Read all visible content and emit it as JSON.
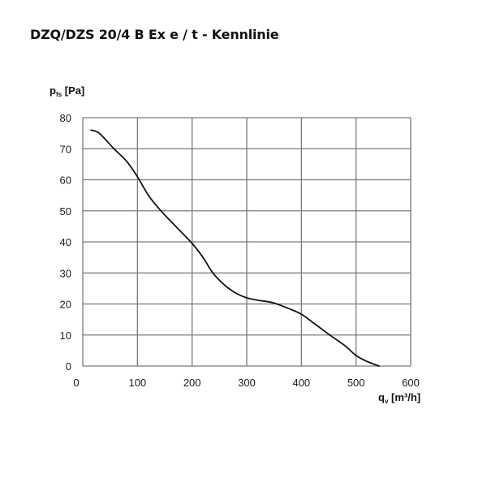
{
  "title": "DZQ/DZS 20/4 B Ex e / t - Kennlinie",
  "colors": {
    "grid": "#7a7a7a",
    "curve": "#111111",
    "background": "#ffffff"
  },
  "chart_data": {
    "type": "line",
    "title": "DZQ/DZS 20/4 B Ex e / t - Kennlinie",
    "ylabel": {
      "main": "p",
      "sub": "fs",
      "unit": "[Pa]"
    },
    "xlabel": {
      "main": "q",
      "sub": "v",
      "unit": "[m³/h]"
    },
    "xlim": [
      0,
      600
    ],
    "ylim": [
      0,
      80
    ],
    "xticks": [
      0,
      100,
      200,
      300,
      400,
      500,
      600
    ],
    "yticks": [
      0,
      10,
      20,
      30,
      40,
      50,
      60,
      70,
      80
    ],
    "grid": true,
    "legend": null,
    "series": [
      {
        "name": "Kennlinie",
        "x": [
          15,
          30,
          57,
          80,
          100,
          120,
          143,
          170,
          200,
          220,
          238,
          260,
          280,
          300,
          320,
          346,
          370,
          400,
          425,
          452,
          480,
          500,
          520,
          542
        ],
        "y": [
          76,
          75,
          70,
          66,
          61,
          55,
          50,
          45,
          39.5,
          35,
          30,
          26,
          23.5,
          22,
          21.2,
          20.5,
          19,
          16.7,
          13.5,
          10,
          6.5,
          3.4,
          1.5,
          0
        ]
      }
    ]
  }
}
